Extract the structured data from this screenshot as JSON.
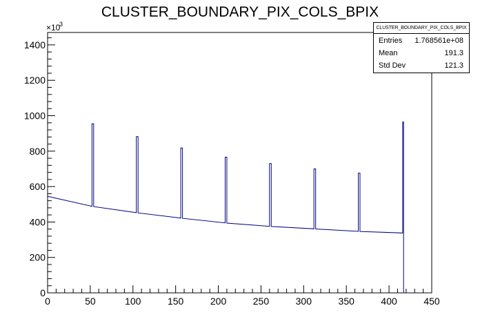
{
  "chart_data": {
    "type": "histogram",
    "title": "CLUSTER_BOUNDARY_PIX_COLS_BPIX",
    "xlabel": "",
    "ylabel": "",
    "y_multiplier_label": "×10",
    "y_multiplier_exp": "3",
    "xlim": [
      0,
      450
    ],
    "ylim": [
      0,
      1470
    ],
    "x_ticks": [
      0,
      50,
      100,
      150,
      200,
      250,
      300,
      350,
      400,
      450
    ],
    "y_ticks": [
      0,
      200,
      400,
      600,
      800,
      1000,
      1200,
      1400
    ],
    "line_color": "#000080",
    "baseline": {
      "x": [
        0,
        4,
        50,
        100,
        150,
        200,
        250,
        300,
        350,
        400,
        415
      ],
      "y": [
        545,
        530,
        490,
        455,
        425,
        398,
        378,
        365,
        350,
        340,
        338
      ]
    },
    "spikes": [
      {
        "x": [
          52,
          54
        ],
        "y": 955
      },
      {
        "x": [
          104,
          106
        ],
        "y": 882
      },
      {
        "x": [
          156,
          158
        ],
        "y": 818
      },
      {
        "x": [
          208,
          210
        ],
        "y": 766
      },
      {
        "x": [
          260,
          262
        ],
        "y": 730
      },
      {
        "x": [
          312,
          314
        ],
        "y": 700
      },
      {
        "x": [
          364,
          366
        ],
        "y": 676
      },
      {
        "x": [
          416,
          417
        ],
        "y": 965
      }
    ],
    "end_bin": {
      "x": [
        415,
        416
      ],
      "y": 0
    }
  },
  "stats": {
    "title": "CLUSTER_BOUNDARY_PIX_COLS_BPIX",
    "rows": [
      {
        "key": "Entries",
        "value": "1.768561e+08"
      },
      {
        "key": "Mean",
        "value": "191.3"
      },
      {
        "key": "Std Dev",
        "value": "121.3"
      }
    ]
  }
}
